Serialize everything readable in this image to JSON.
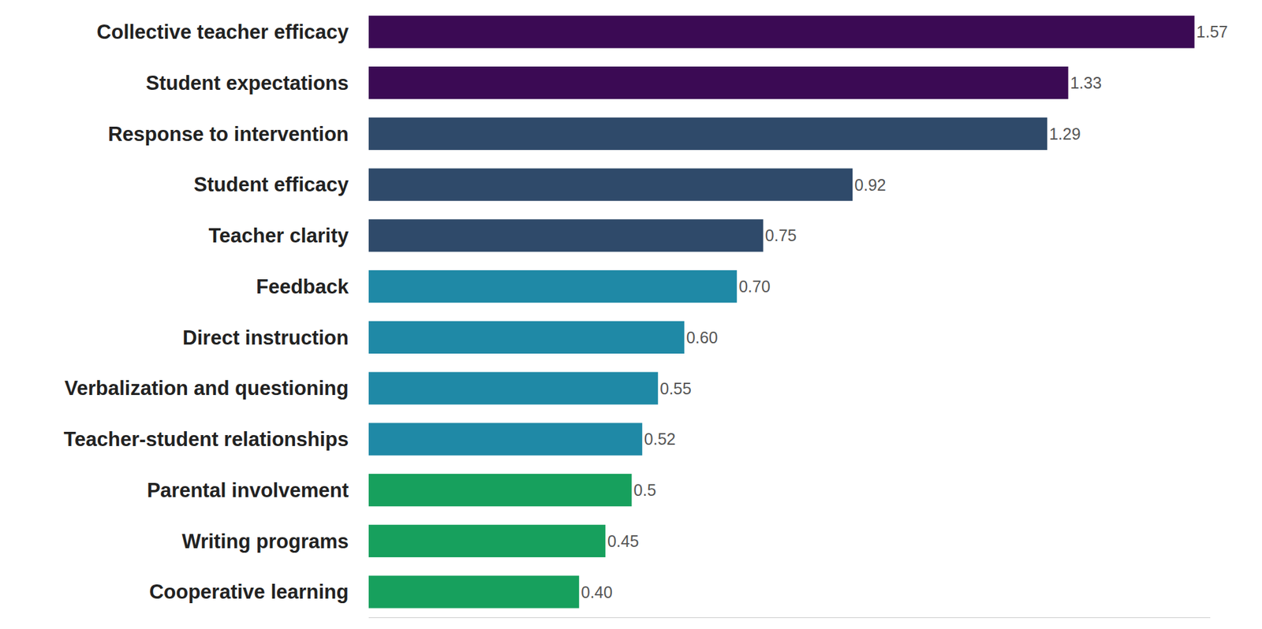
{
  "chart_data": {
    "type": "bar",
    "orientation": "horizontal",
    "categories": [
      "Collective teacher efficacy",
      "Student expectations",
      "Response to intervention",
      "Student efficacy",
      "Teacher clarity",
      "Feedback",
      "Direct instruction",
      "Verbalization and questioning",
      "Teacher-student relationships",
      "Parental involvement",
      "Writing programs",
      "Cooperative learning"
    ],
    "values": [
      1.57,
      1.33,
      1.29,
      0.92,
      0.75,
      0.7,
      0.6,
      0.55,
      0.52,
      0.5,
      0.45,
      0.4
    ],
    "value_labels": [
      "1.57",
      "1.33",
      "1.29",
      "0.92",
      "0.75",
      "0.70",
      "0.60",
      "0.55",
      "0.52",
      "0.5",
      "0.45",
      "0.40"
    ],
    "colors": [
      "#3b0a54",
      "#3b0a54",
      "#2f4a6a",
      "#2f4a6a",
      "#2f4a6a",
      "#1f89a6",
      "#1f89a6",
      "#1f89a6",
      "#1f89a6",
      "#17a05d",
      "#17a05d",
      "#17a05d"
    ],
    "xlim": [
      0,
      1.6
    ],
    "xticks": [],
    "grid": false,
    "data_labels": true,
    "tick_labels": "y"
  }
}
